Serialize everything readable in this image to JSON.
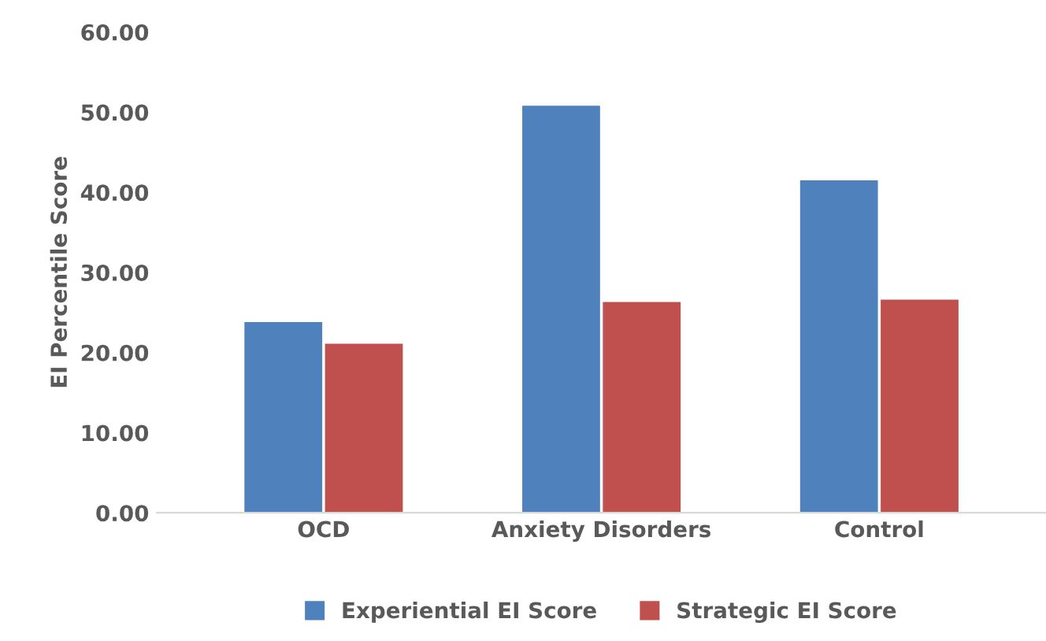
{
  "chart_data": {
    "type": "bar",
    "ylabel": "EI Percentile Score",
    "categories": [
      "OCD",
      "Anxiety Disorders",
      "Control"
    ],
    "series": [
      {
        "name": "Experiential EI Score",
        "color": "#4f81bd",
        "values": [
          23.8,
          50.8,
          41.5
        ]
      },
      {
        "name": "Strategic EI Score",
        "color": "#c0504d",
        "values": [
          21.1,
          26.3,
          26.6
        ]
      }
    ],
    "ylim": [
      0,
      60
    ],
    "yticks": [
      {
        "value": 0,
        "label": "0.00"
      },
      {
        "value": 10,
        "label": "10.00"
      },
      {
        "value": 20,
        "label": "20.00"
      },
      {
        "value": 30,
        "label": "30.00"
      },
      {
        "value": 40,
        "label": "40.00"
      },
      {
        "value": 50,
        "label": "50.00"
      },
      {
        "value": 60,
        "label": "60.00"
      }
    ],
    "grid": false,
    "legend": "bottom"
  }
}
